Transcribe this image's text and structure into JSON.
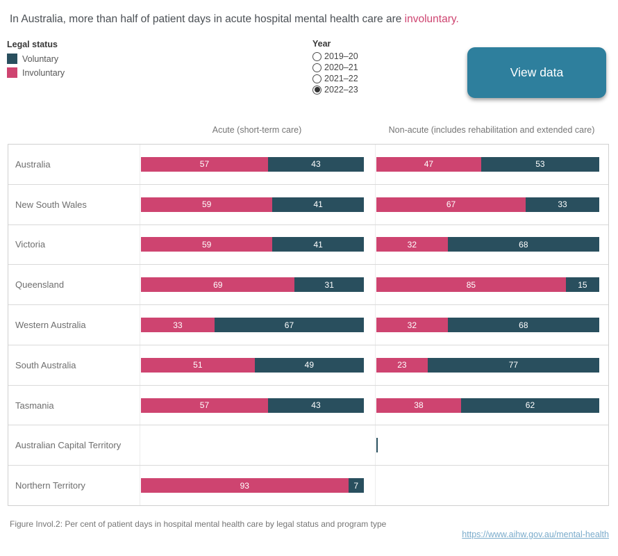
{
  "title": {
    "text": "In Australia, more than half of patient days in acute hospital mental health care are ",
    "highlight": "involuntary."
  },
  "legend": {
    "title": "Legal status",
    "items": [
      {
        "label": "Voluntary",
        "color": "#294F5E"
      },
      {
        "label": "Involuntary",
        "color": "#CE4470"
      }
    ]
  },
  "year_filter": {
    "title": "Year",
    "options": [
      {
        "label": "2019–20",
        "selected": false
      },
      {
        "label": "2020–21",
        "selected": false
      },
      {
        "label": "2021–22",
        "selected": false
      },
      {
        "label": "2022–23",
        "selected": true
      }
    ]
  },
  "view_data_button": {
    "label": "View data",
    "color": "#2E7F9D"
  },
  "columns": {
    "acute": "Acute (short-term care)",
    "nonacute": "Non-acute (includes rehabilitation and extended care)"
  },
  "chart_data": {
    "type": "bar",
    "subtype": "horizontal-stacked-100-percent",
    "unit": "per cent of patient days",
    "year_shown": "2022–23",
    "series_order": [
      "Involuntary",
      "Voluntary"
    ],
    "colors": {
      "Involuntary": "#CE4470",
      "Voluntary": "#294F5E"
    },
    "groups": [
      "Acute (short-term care)",
      "Non-acute (includes rehabilitation and extended care)"
    ],
    "categories": [
      "Australia",
      "New South Wales",
      "Victoria",
      "Queensland",
      "Western Australia",
      "South Australia",
      "Tasmania",
      "Australian Capital Territory",
      "Northern Territory"
    ],
    "xlim": [
      0,
      100
    ],
    "grid": false,
    "rows": [
      {
        "region": "Australia",
        "acute": {
          "involuntary": 57,
          "voluntary": 43
        },
        "nonacute": {
          "involuntary": 47,
          "voluntary": 53
        }
      },
      {
        "region": "New South Wales",
        "acute": {
          "involuntary": 59,
          "voluntary": 41
        },
        "nonacute": {
          "involuntary": 67,
          "voluntary": 33
        }
      },
      {
        "region": "Victoria",
        "acute": {
          "involuntary": 59,
          "voluntary": 41
        },
        "nonacute": {
          "involuntary": 32,
          "voluntary": 68
        }
      },
      {
        "region": "Queensland",
        "acute": {
          "involuntary": 69,
          "voluntary": 31
        },
        "nonacute": {
          "involuntary": 85,
          "voluntary": 15
        }
      },
      {
        "region": "Western Australia",
        "acute": {
          "involuntary": 33,
          "voluntary": 67
        },
        "nonacute": {
          "involuntary": 32,
          "voluntary": 68
        }
      },
      {
        "region": "South Australia",
        "acute": {
          "involuntary": 51,
          "voluntary": 49
        },
        "nonacute": {
          "involuntary": 23,
          "voluntary": 77
        }
      },
      {
        "region": "Tasmania",
        "acute": {
          "involuntary": 57,
          "voluntary": 43
        },
        "nonacute": {
          "involuntary": 38,
          "voluntary": 62
        }
      },
      {
        "region": "Australian Capital Territory",
        "acute": null,
        "nonacute": {
          "marker": true
        }
      },
      {
        "region": "Northern Territory",
        "acute": {
          "involuntary": 93,
          "voluntary": 7
        },
        "nonacute": null
      }
    ]
  },
  "footer": {
    "caption": "Figure Invol.2: Per cent of patient days in hospital mental health care by legal status and program type",
    "link": "https://www.aihw.gov.au/mental-health"
  }
}
